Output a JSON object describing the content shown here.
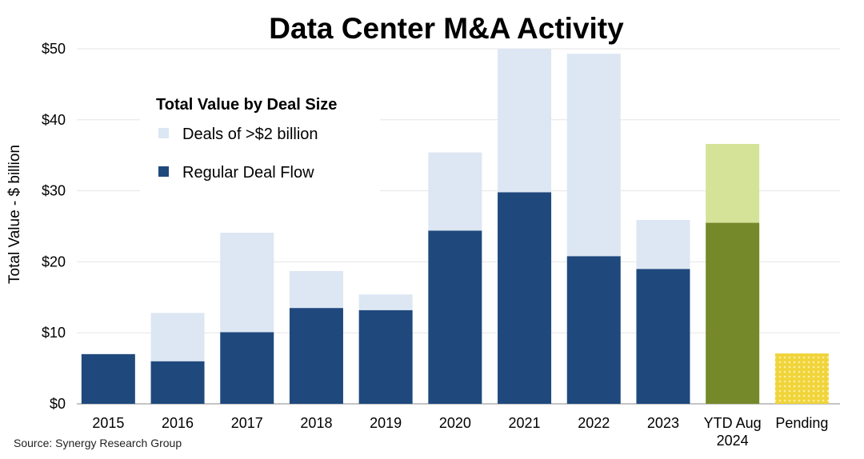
{
  "chart_data": {
    "type": "bar",
    "stacked": true,
    "title": "Data Center M&A Activity",
    "ylabel": "Total Value - $ billion",
    "xlabel": "",
    "ylim": [
      0,
      50
    ],
    "yticks": [
      "$0",
      "$10",
      "$20",
      "$30",
      "$40",
      "$50"
    ],
    "ytick_values": [
      0,
      10,
      20,
      30,
      40,
      50
    ],
    "grid": true,
    "categories": [
      "2015",
      "2016",
      "2017",
      "2018",
      "2019",
      "2020",
      "2021",
      "2022",
      "2023",
      "YTD Aug 2024",
      "Pending"
    ],
    "category_lines": [
      [
        "2015"
      ],
      [
        "2016"
      ],
      [
        "2017"
      ],
      [
        "2018"
      ],
      [
        "2019"
      ],
      [
        "2020"
      ],
      [
        "2021"
      ],
      [
        "2022"
      ],
      [
        "2023"
      ],
      [
        "YTD Aug",
        "2024"
      ],
      [
        "Pending"
      ]
    ],
    "legend": {
      "title": "Total Value by Deal Size",
      "placement": "top-left",
      "entries": [
        "Deals of >$2 billion",
        "Regular Deal Flow"
      ]
    },
    "series": [
      {
        "name": "Regular Deal Flow",
        "values": [
          7.0,
          6.0,
          10.1,
          13.5,
          13.2,
          24.4,
          29.8,
          20.8,
          19.0,
          25.5,
          7.1
        ]
      },
      {
        "name": "Deals of >$2 billion",
        "values": [
          0,
          6.8,
          14.0,
          5.2,
          2.2,
          11.0,
          20.2,
          28.5,
          6.9,
          11.1,
          0
        ]
      }
    ],
    "colors": {
      "regular": "#1f497d",
      "large": "#dde6f3",
      "ytd_regular": "#76892a",
      "ytd_large": "#d5e398",
      "pending": "#f0d43a"
    },
    "source": "Source: Synergy Research Group"
  }
}
